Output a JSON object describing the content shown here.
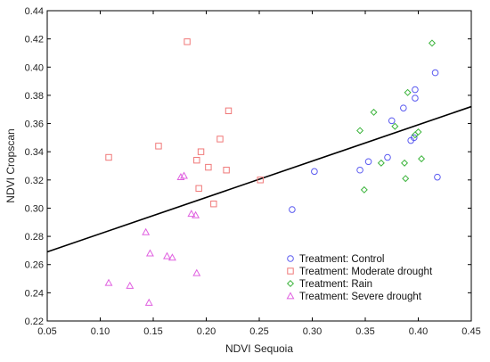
{
  "chart_data": {
    "type": "scatter",
    "xlabel": "NDVI Sequoia",
    "ylabel": "NDVI Cropscan",
    "xlim": [
      0.05,
      0.45
    ],
    "ylim": [
      0.22,
      0.44
    ],
    "x_ticks": [
      "0.05",
      "0.10",
      "0.15",
      "0.20",
      "0.25",
      "0.30",
      "0.35",
      "0.40",
      "0.45"
    ],
    "y_ticks": [
      "0.22",
      "0.24",
      "0.26",
      "0.28",
      "0.30",
      "0.32",
      "0.34",
      "0.36",
      "0.38",
      "0.40",
      "0.42",
      "0.44"
    ],
    "grid": false,
    "legend_position": "bottom-right",
    "trendline": {
      "x": [
        0.05,
        0.45
      ],
      "y": [
        0.269,
        0.372
      ],
      "color": "#000000"
    },
    "series": [
      {
        "name": "Treatment: Control",
        "marker": "circle",
        "color": "#5a5af0",
        "points": [
          [
            0.281,
            0.299
          ],
          [
            0.302,
            0.326
          ],
          [
            0.345,
            0.327
          ],
          [
            0.353,
            0.333
          ],
          [
            0.371,
            0.336
          ],
          [
            0.375,
            0.362
          ],
          [
            0.386,
            0.371
          ],
          [
            0.393,
            0.348
          ],
          [
            0.396,
            0.35
          ],
          [
            0.397,
            0.384
          ],
          [
            0.397,
            0.378
          ],
          [
            0.416,
            0.396
          ],
          [
            0.418,
            0.322
          ]
        ]
      },
      {
        "name": "Treatment: Moderate drought",
        "marker": "square",
        "color": "#f07878",
        "points": [
          [
            0.108,
            0.336
          ],
          [
            0.155,
            0.344
          ],
          [
            0.182,
            0.418
          ],
          [
            0.191,
            0.334
          ],
          [
            0.193,
            0.314
          ],
          [
            0.195,
            0.34
          ],
          [
            0.202,
            0.329
          ],
          [
            0.207,
            0.303
          ],
          [
            0.213,
            0.349
          ],
          [
            0.219,
            0.327
          ],
          [
            0.221,
            0.369
          ],
          [
            0.251,
            0.32
          ]
        ]
      },
      {
        "name": "Treatment: Rain",
        "marker": "diamond",
        "color": "#3cb43c",
        "points": [
          [
            0.345,
            0.355
          ],
          [
            0.349,
            0.313
          ],
          [
            0.358,
            0.368
          ],
          [
            0.365,
            0.332
          ],
          [
            0.378,
            0.358
          ],
          [
            0.387,
            0.332
          ],
          [
            0.388,
            0.321
          ],
          [
            0.39,
            0.382
          ],
          [
            0.397,
            0.352
          ],
          [
            0.4,
            0.354
          ],
          [
            0.403,
            0.335
          ],
          [
            0.413,
            0.417
          ]
        ]
      },
      {
        "name": "Treatment: Severe drought",
        "marker": "triangle",
        "color": "#e060e0",
        "points": [
          [
            0.108,
            0.247
          ],
          [
            0.128,
            0.245
          ],
          [
            0.143,
            0.283
          ],
          [
            0.146,
            0.233
          ],
          [
            0.147,
            0.268
          ],
          [
            0.163,
            0.266
          ],
          [
            0.168,
            0.265
          ],
          [
            0.176,
            0.322
          ],
          [
            0.179,
            0.323
          ],
          [
            0.186,
            0.296
          ],
          [
            0.19,
            0.295
          ],
          [
            0.191,
            0.254
          ]
        ]
      }
    ]
  }
}
